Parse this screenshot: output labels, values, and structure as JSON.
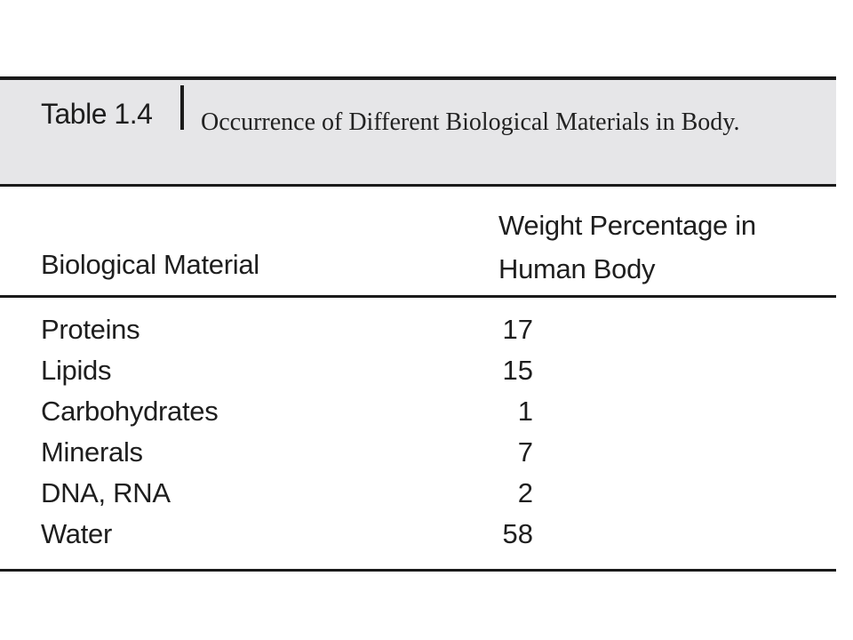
{
  "table": {
    "label": "Table 1.4",
    "title": "Occurrence of Different Biological Materials in Body.",
    "headers": {
      "material": "Biological Material",
      "weight": "Weight Percentage in Human Body"
    },
    "rows": [
      {
        "material": "Proteins",
        "weight": "17"
      },
      {
        "material": "Lipids",
        "weight": "15"
      },
      {
        "material": "Carbohydrates",
        "weight": "1"
      },
      {
        "material": "Minerals",
        "weight": "7"
      },
      {
        "material": "DNA, RNA",
        "weight": "2"
      },
      {
        "material": "Water",
        "weight": "58"
      }
    ]
  }
}
